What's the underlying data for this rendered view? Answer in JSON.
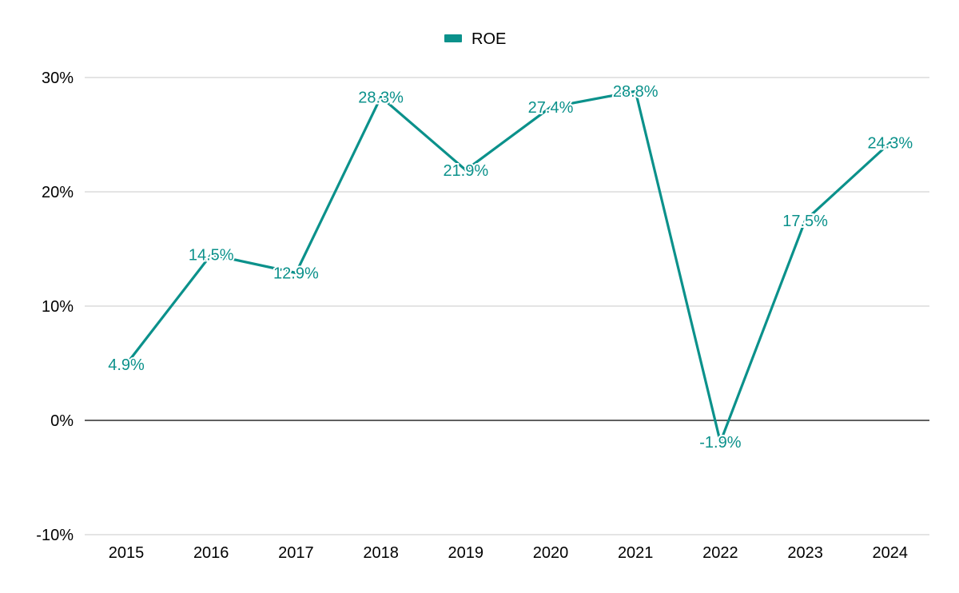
{
  "chart_data": {
    "type": "line",
    "categories": [
      "2015",
      "2016",
      "2017",
      "2018",
      "2019",
      "2020",
      "2021",
      "2022",
      "2023",
      "2024"
    ],
    "series": [
      {
        "name": "ROE",
        "values": [
          4.9,
          14.5,
          12.9,
          28.3,
          21.9,
          27.4,
          28.8,
          -1.9,
          17.5,
          24.3
        ],
        "data_labels": [
          "4.9%",
          "14.5%",
          "12.9%",
          "28.3%",
          "21.9%",
          "27.4%",
          "28.8%",
          "-1.9%",
          "17.5%",
          "24.3%"
        ]
      }
    ],
    "title": "",
    "xlabel": "",
    "ylabel": "",
    "ylim": [
      -10,
      30
    ],
    "yticks": [
      -10,
      0,
      10,
      20,
      30
    ],
    "ytick_labels": [
      "-10%",
      "0%",
      "10%",
      "20%",
      "30%"
    ],
    "grid": true,
    "legend_position": "top-center",
    "colors": {
      "series": "#0b918b",
      "grid": "#c8c8c8",
      "zero_line": "#000000",
      "text": "#000000"
    }
  }
}
